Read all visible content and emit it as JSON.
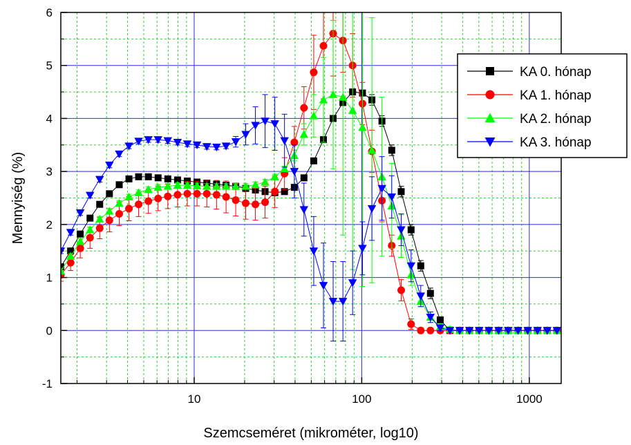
{
  "chart_data": {
    "type": "scatter",
    "title": "",
    "xlabel": "Szemcseméret (mikrométer, log10)",
    "ylabel": "Mennyiség (%)",
    "x_scale": "log",
    "xlim": [
      1.6,
      1550
    ],
    "ylim": [
      -1,
      6
    ],
    "x_ticks": [
      10,
      100,
      1000
    ],
    "x_tick_labels": [
      "10",
      "100",
      "1000"
    ],
    "y_ticks": [
      -1,
      0,
      1,
      2,
      3,
      4,
      5,
      6
    ],
    "y_tick_labels": [
      "-1",
      "0",
      "1",
      "2",
      "3",
      "4",
      "5",
      "6"
    ],
    "grid": true,
    "legend_position": "top-right",
    "x": [
      1.6,
      1.83,
      2.09,
      2.39,
      2.73,
      3.12,
      3.57,
      4.08,
      4.66,
      5.33,
      6.09,
      6.96,
      7.96,
      9.1,
      10.4,
      11.9,
      13.6,
      15.5,
      17.7,
      20.3,
      23.2,
      26.5,
      30.3,
      34.6,
      39.6,
      45.2,
      51.7,
      59.1,
      67.5,
      77.2,
      88.2,
      101,
      115,
      132,
      151,
      172,
      197,
      225,
      257,
      294,
      336,
      384,
      439,
      502,
      574,
      656,
      749,
      857,
      979,
      1119,
      1279,
      1462
    ],
    "series": [
      {
        "name": "KA 0. hónap",
        "color": "#000000",
        "marker": "square",
        "values": [
          1.2,
          1.5,
          1.82,
          2.12,
          2.38,
          2.58,
          2.75,
          2.86,
          2.9,
          2.9,
          2.88,
          2.86,
          2.84,
          2.82,
          2.8,
          2.78,
          2.76,
          2.74,
          2.72,
          2.68,
          2.65,
          2.62,
          2.6,
          2.62,
          2.7,
          2.88,
          3.2,
          3.6,
          4.0,
          4.3,
          4.5,
          4.48,
          4.35,
          3.95,
          3.4,
          2.62,
          1.9,
          1.22,
          0.7,
          0.2,
          0.0,
          0.0,
          0.0,
          0.0,
          0.0,
          0.0,
          0.0,
          0.0,
          0.0,
          0.0,
          0.0,
          0.0
        ],
        "errors": [
          0.05,
          0.05,
          0.05,
          0.05,
          0.05,
          0.05,
          0.05,
          0.05,
          0.05,
          0.05,
          0.05,
          0.05,
          0.05,
          0.05,
          0.05,
          0.05,
          0.05,
          0.05,
          0.05,
          0.05,
          0.05,
          0.05,
          0.05,
          0.05,
          0.05,
          0.05,
          0.05,
          0.05,
          0.05,
          0.05,
          0.05,
          0.05,
          0.1,
          0.1,
          0.1,
          0.1,
          0.1,
          0.1,
          0.1,
          0.05,
          0.05,
          0.02,
          0.02,
          0.02,
          0.02,
          0.02,
          0.02,
          0.02,
          0.02,
          0.02,
          0.02,
          0.02
        ]
      },
      {
        "name": "KA 1. hónap",
        "color": "#ff0000",
        "marker": "circle",
        "values": [
          1.05,
          1.28,
          1.55,
          1.75,
          1.93,
          2.08,
          2.2,
          2.3,
          2.38,
          2.44,
          2.49,
          2.53,
          2.56,
          2.58,
          2.58,
          2.58,
          2.56,
          2.52,
          2.46,
          2.4,
          2.38,
          2.42,
          2.62,
          2.96,
          3.55,
          4.2,
          4.87,
          5.37,
          5.6,
          5.47,
          5.0,
          4.28,
          3.38,
          2.45,
          1.6,
          0.76,
          0.12,
          0.0,
          0.0,
          0.0,
          0.0,
          0.0,
          0.0,
          0.0,
          0.0,
          0.0,
          0.0,
          0.0,
          0.0,
          0.0,
          0.0,
          0.0
        ],
        "errors": [
          0.12,
          0.15,
          0.18,
          0.2,
          0.2,
          0.22,
          0.22,
          0.23,
          0.23,
          0.23,
          0.23,
          0.23,
          0.23,
          0.23,
          0.23,
          0.25,
          0.27,
          0.3,
          0.3,
          0.3,
          0.3,
          0.3,
          0.3,
          0.3,
          0.3,
          0.4,
          0.7,
          1.0,
          0.8,
          0.6,
          0.6,
          0.4,
          0.4,
          0.4,
          0.2,
          0.2,
          0.1,
          0.05,
          0.05,
          0.05,
          0.05,
          0.05,
          0.05,
          0.05,
          0.05,
          0.05,
          0.05,
          0.05,
          0.05,
          0.05,
          0.05,
          0.05
        ]
      },
      {
        "name": "KA 2. hónap",
        "color": "#00ff00",
        "marker": "triangle-up",
        "values": [
          1.12,
          1.4,
          1.68,
          1.9,
          2.1,
          2.25,
          2.4,
          2.52,
          2.6,
          2.66,
          2.7,
          2.72,
          2.74,
          2.74,
          2.73,
          2.72,
          2.72,
          2.72,
          2.72,
          2.72,
          2.75,
          2.8,
          2.9,
          3.05,
          3.3,
          3.7,
          4.05,
          4.35,
          4.45,
          4.4,
          4.15,
          3.83,
          3.4,
          2.9,
          2.35,
          1.78,
          1.05,
          0.55,
          0.25,
          0.07,
          0.02,
          0.0,
          0.0,
          0.0,
          0.0,
          0.0,
          0.0,
          0.0,
          0.0,
          0.0,
          0.0,
          0.0
        ],
        "errors": [
          0.05,
          0.05,
          0.05,
          0.05,
          0.05,
          0.05,
          0.05,
          0.05,
          0.05,
          0.05,
          0.05,
          0.05,
          0.05,
          0.05,
          0.05,
          0.05,
          0.05,
          0.05,
          0.05,
          0.05,
          0.05,
          0.05,
          0.05,
          0.05,
          0.1,
          0.2,
          0.4,
          0.8,
          1.4,
          2.6,
          3.0,
          3.0,
          2.5,
          1.5,
          0.8,
          0.4,
          0.2,
          0.1,
          0.1,
          0.05,
          0.05,
          0.02,
          0.02,
          0.02,
          0.02,
          0.02,
          0.02,
          0.02,
          0.02,
          0.02,
          0.02,
          0.02
        ]
      },
      {
        "name": "KA 3. hónap",
        "color": "#0000ff",
        "marker": "triangle-down",
        "values": [
          1.5,
          1.85,
          2.22,
          2.55,
          2.85,
          3.12,
          3.33,
          3.48,
          3.57,
          3.6,
          3.6,
          3.58,
          3.55,
          3.52,
          3.5,
          3.47,
          3.46,
          3.48,
          3.56,
          3.7,
          3.87,
          3.95,
          3.9,
          3.58,
          3.0,
          2.28,
          1.5,
          0.85,
          0.55,
          0.55,
          0.9,
          1.55,
          2.3,
          2.68,
          2.52,
          1.9,
          1.22,
          0.65,
          0.25,
          0.05,
          0.0,
          0.0,
          0.0,
          0.0,
          0.0,
          0.0,
          0.0,
          0.0,
          0.0,
          0.0,
          0.0,
          0.0
        ],
        "errors": [
          0.05,
          0.05,
          0.05,
          0.05,
          0.05,
          0.05,
          0.05,
          0.05,
          0.05,
          0.05,
          0.05,
          0.05,
          0.05,
          0.05,
          0.05,
          0.05,
          0.05,
          0.05,
          0.1,
          0.2,
          0.35,
          0.5,
          0.5,
          0.5,
          0.5,
          0.5,
          0.65,
          0.8,
          0.75,
          0.75,
          0.6,
          0.5,
          0.6,
          0.6,
          0.4,
          0.3,
          0.3,
          0.2,
          0.1,
          0.05,
          0.02,
          0.02,
          0.02,
          0.02,
          0.02,
          0.02,
          0.02,
          0.02,
          0.02,
          0.02,
          0.02,
          0.02
        ]
      }
    ]
  }
}
